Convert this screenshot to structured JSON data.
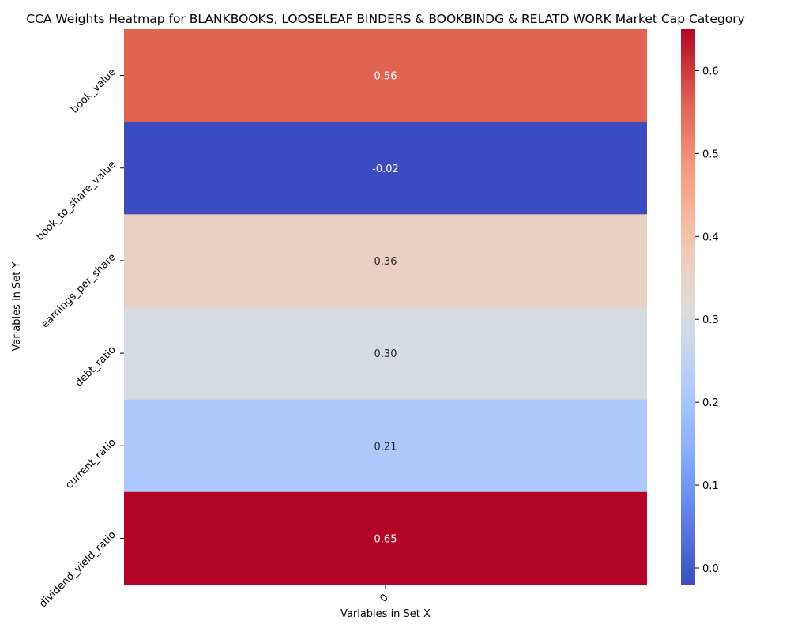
{
  "chart_data": {
    "type": "heatmap",
    "title": "CCA Weights Heatmap for BLANKBOOKS, LOOSELEAF BINDERS & BOOKBINDG & RELATD WORK Market Cap Category",
    "xlabel": "Variables in Set X",
    "ylabel": "Variables in Set Y",
    "x_categories": [
      "0"
    ],
    "y_categories": [
      "book_value",
      "book_to_share_value",
      "earnings_per_share",
      "debt_ratio",
      "current_ratio",
      "dividend_yield_ratio"
    ],
    "values": [
      0.56,
      -0.02,
      0.36,
      0.3,
      0.21,
      0.65
    ],
    "value_labels": [
      "0.56",
      "-0.02",
      "0.36",
      "0.30",
      "0.21",
      "0.65"
    ],
    "colormap": "coolwarm",
    "vmin": -0.02,
    "vmax": 0.65,
    "colorbar_ticks": [
      "0.0",
      "0.1",
      "0.2",
      "0.3",
      "0.4",
      "0.5",
      "0.6"
    ]
  }
}
